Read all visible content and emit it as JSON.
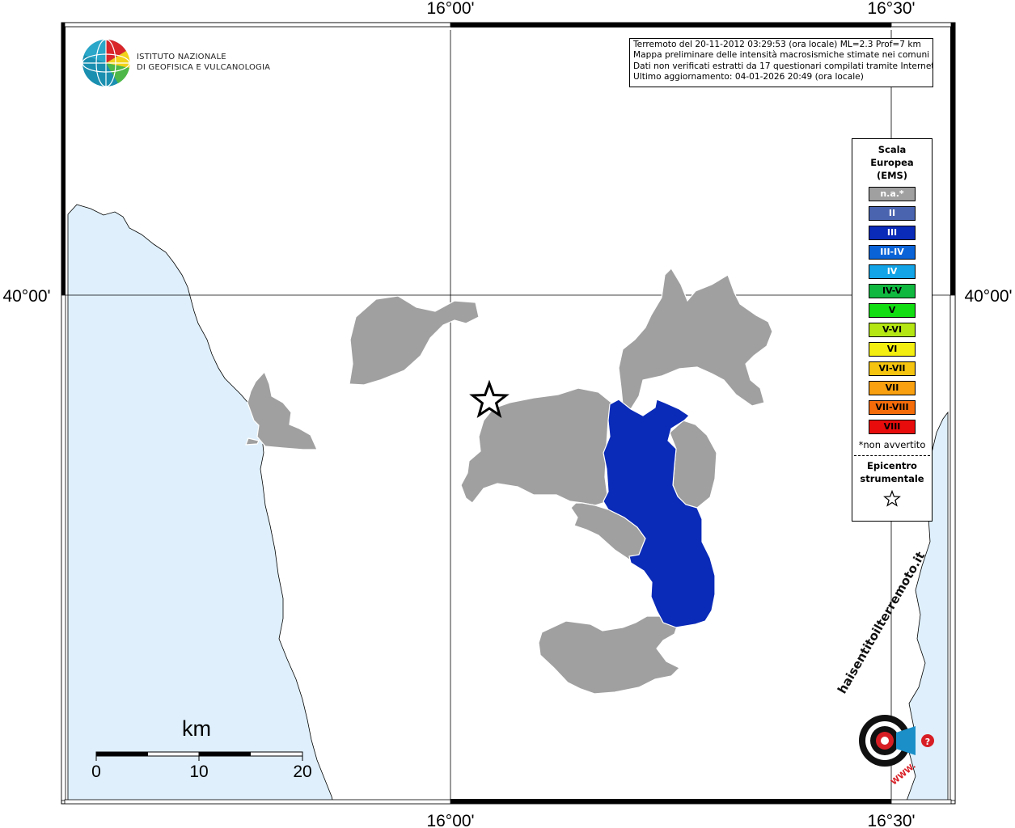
{
  "map": {
    "grid_labels": {
      "lon_left": "16°00'",
      "lon_right": "16°30'",
      "lat": "40°00'"
    },
    "info_lines": [
      "Terremoto del 20-11-2012 03:29:53 (ora locale) ML=2.3 Prof=7 km",
      "Mappa preliminare delle intensità macrosismiche stimate nei comuni",
      "Dati non verificati estratti da 17 questionari compilati tramite Internet.",
      "Ultimo aggiornamento: 04-01-2026 20:49 (ora locale)"
    ],
    "logo": {
      "line1": "ISTITUTO NAZIONALE",
      "line2": "DI GEOFISICA E VULCANOLOGIA"
    },
    "legend": {
      "title": [
        "Scala",
        "Europea",
        "(EMS)"
      ],
      "items": [
        {
          "label": "n.a.*",
          "color": "#a0a0a0"
        },
        {
          "label": "II",
          "color": "#4a64b0"
        },
        {
          "label": "III",
          "color": "#0a2ab8"
        },
        {
          "label": "III-IV",
          "color": "#0a64d8"
        },
        {
          "label": "IV",
          "color": "#12a4e6"
        },
        {
          "label": "IV-V",
          "color": "#10b840"
        },
        {
          "label": "V",
          "color": "#12dc12"
        },
        {
          "label": "V-VI",
          "color": "#b4e614"
        },
        {
          "label": "VI",
          "color": "#f4ee10"
        },
        {
          "label": "VI-VII",
          "color": "#f4c410"
        },
        {
          "label": "VII",
          "color": "#f8a010"
        },
        {
          "label": "VII-VIII",
          "color": "#f46c0a"
        },
        {
          "label": "VIII",
          "color": "#e80c0c"
        }
      ],
      "note": "*non avvertito",
      "epicenter_label": [
        "Epicentro",
        "strumentale"
      ]
    },
    "scale_bar": {
      "unit": "km",
      "ticks": [
        "0",
        "10",
        "20"
      ]
    },
    "hst_logo": {
      "main": "haisentitoilterremoto.it",
      "url": "WWW."
    },
    "colors": {
      "sea": "#dff0fc",
      "na_area": "#a0a0a0",
      "ems_iii": "#0a2ab8"
    }
  }
}
